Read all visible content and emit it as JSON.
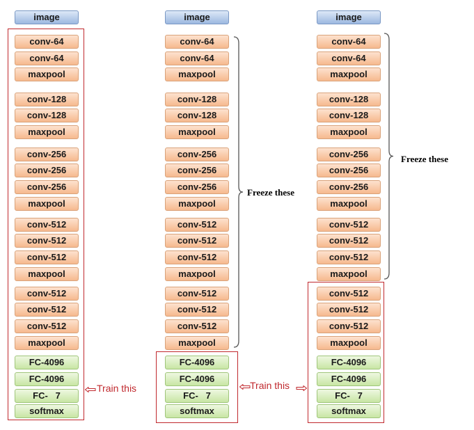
{
  "layers": [
    "conv-64",
    "conv-64",
    "maxpool",
    "conv-128",
    "conv-128",
    "maxpool",
    "conv-256",
    "conv-256",
    "conv-256",
    "maxpool",
    "conv-512",
    "conv-512",
    "conv-512",
    "maxpool",
    "conv-512",
    "conv-512",
    "conv-512",
    "maxpool",
    "FC-4096",
    "FC-4096",
    "FC-",
    "softmax"
  ],
  "input_label": "image",
  "fc_last_suffix": "7",
  "columns": [
    {
      "name": "column-1",
      "train_label": "Train this",
      "freeze_label": ""
    },
    {
      "name": "column-2",
      "train_label": "Train this",
      "freeze_label": "Freeze these"
    },
    {
      "name": "column-3",
      "train_label": "",
      "freeze_label": "Freeze these"
    }
  ],
  "colors": {
    "image": "#9cb8e0",
    "conv": "#f6b98e",
    "fc": "#c8e6a4",
    "highlight": "#c0282d"
  }
}
